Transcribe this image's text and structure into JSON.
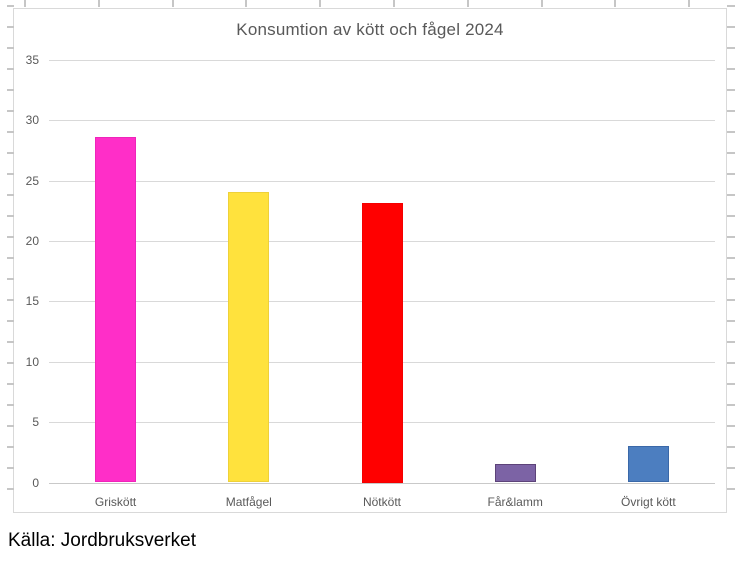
{
  "chart_data": {
    "type": "bar",
    "title": "Konsumtion av kött och fågel 2024",
    "categories": [
      "Griskött",
      "Matfågel",
      "Nötkött",
      "Får&lamm",
      "Övrigt kött"
    ],
    "values": [
      28.6,
      24.1,
      23.2,
      1.5,
      3.0
    ],
    "bar_colors": [
      "#ff2ec8",
      "#ffe23d",
      "#ff0000",
      "#7c63a5",
      "#4c7ec0"
    ],
    "bar_border_colors": [
      "#ef25ba",
      "#eed139",
      "#f40000",
      "#5d4379",
      "#3a68a8"
    ],
    "xlabel": "",
    "ylabel": "",
    "ylim": [
      0,
      35
    ],
    "ytick_step": 5,
    "ytick_labels": [
      "0",
      "5",
      "10",
      "15",
      "20",
      "25",
      "30",
      "35"
    ],
    "grid": true,
    "legend": false,
    "gridline_color": "#d9d9d9",
    "text_color": "#595959"
  },
  "source_text": "Källa: Jordbruksverket"
}
